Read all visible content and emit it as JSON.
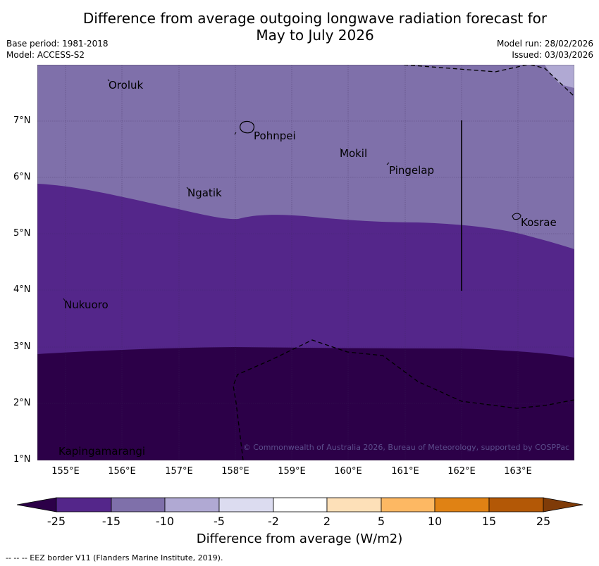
{
  "header": {
    "title_line1": "Difference from average outgoing longwave radiation forecast for",
    "title_line2": "May to July 2026",
    "base_period": "Base period: 1981-2018",
    "model": "Model: ACCESS-S2",
    "model_run": "Model run: 28/02/2026",
    "issued": "Issued: 03/03/2026"
  },
  "axes": {
    "lat_labels": [
      "7°N",
      "6°N",
      "5°N",
      "4°N",
      "3°N",
      "2°N",
      "1°N"
    ],
    "lon_labels": [
      "155°E",
      "156°E",
      "157°E",
      "158°E",
      "159°E",
      "160°E",
      "161°E",
      "162°E",
      "163°E"
    ]
  },
  "places": {
    "oroluk": "Oroluk",
    "pohnpei": "Pohnpei",
    "mokil": "Mokil",
    "pingelap": "Pingelap",
    "ngatik": "Ngatik",
    "kosrae": "Kosrae",
    "nukuoro": "Nukuoro",
    "kapingamarangi": "Kapingamarangi"
  },
  "copyright": "© Commonwealth of Australia 2026, Bureau of Meteorology, supported by COSPPac",
  "colorbar": {
    "title": "Difference from average (W/m2)",
    "ticks": [
      "-25",
      "-15",
      "-10",
      "-5",
      "-2",
      "2",
      "5",
      "10",
      "15",
      "25"
    ],
    "colors": {
      "below_-25": "#2c0048",
      "-25_-15": "#54268a",
      "-15_-10": "#7f70aa",
      "-10_-5": "#b0a9d3",
      "-5_-2": "#dcdcf0",
      "-2_2": "#ffffff",
      "2_5": "#fde0b8",
      "5_10": "#fdb863",
      "10_15": "#e08214",
      "15_25": "#b35806",
      "above_25": "#7f3b08"
    }
  },
  "footnote": "--  --  -- EEZ border V11 (Flanders Marine Institute, 2019)."
}
